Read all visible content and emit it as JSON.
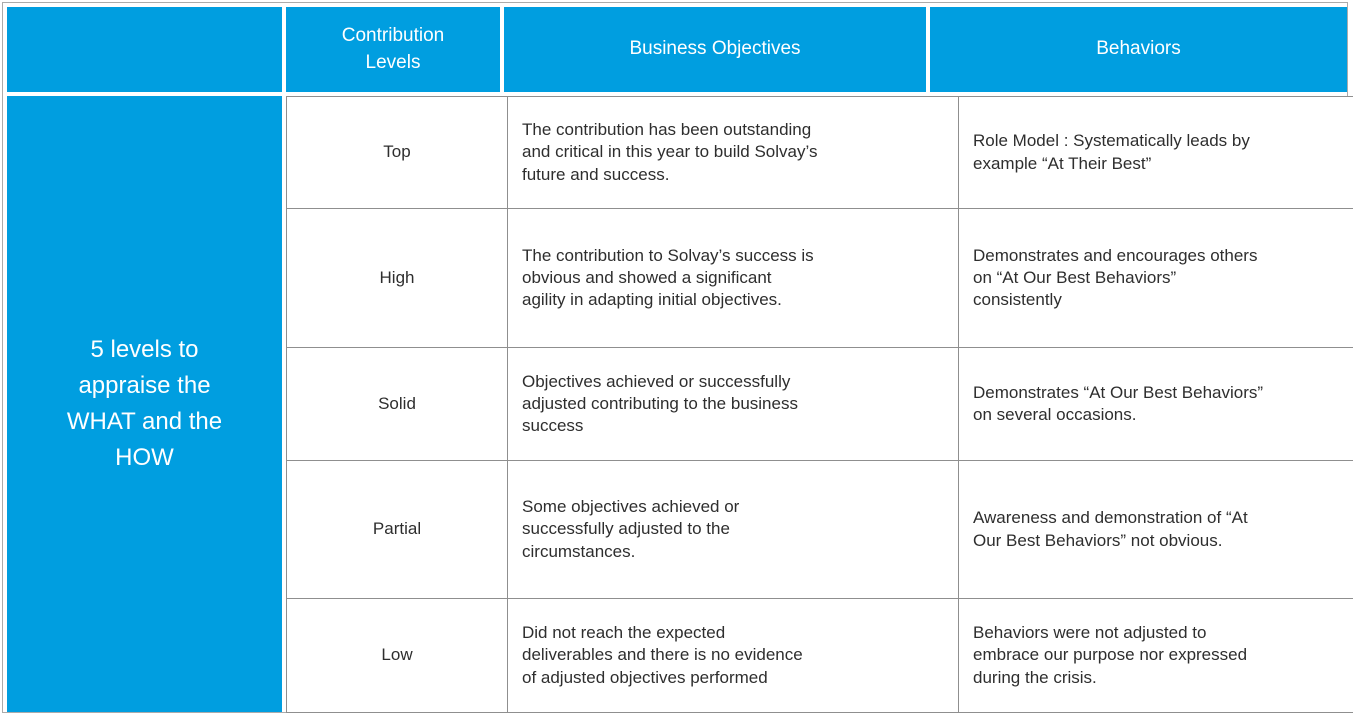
{
  "table": {
    "colors": {
      "accent": "#009EE0",
      "body_border": "#8F8F8F",
      "outer_border": "#ABABAB",
      "header_text": "#FFFFFF",
      "body_text": "#2E2E2E"
    },
    "headers": {
      "empty": "",
      "levels": "Contribution\nLevels",
      "objectives": "Business Objectives",
      "behaviors": "Behaviors"
    },
    "left_banner": "5 levels to\nappraise the\nWHAT and the\nHOW",
    "rows": [
      {
        "level": "Top",
        "objective": "The contribution has been outstanding\nand critical in this year to build Solvay’s\nfuture and success.",
        "behavior": "Role Model : Systematically leads by\nexample “At Their Best”"
      },
      {
        "level": "High",
        "objective": "The contribution to Solvay’s success is\nobvious and showed a significant\nagility in adapting initial objectives.",
        "behavior": "Demonstrates and encourages others\non “At Our Best Behaviors”\nconsistently"
      },
      {
        "level": "Solid",
        "objective": "Objectives achieved or successfully\nadjusted contributing to the business\nsuccess",
        "behavior": "Demonstrates “At Our Best Behaviors”\non several occasions."
      },
      {
        "level": "Partial",
        "objective": "Some objectives achieved or\nsuccessfully adjusted to the\ncircumstances.",
        "behavior": "Awareness and demonstration of “At\nOur Best Behaviors” not obvious."
      },
      {
        "level": "Low",
        "objective": "Did not reach the expected\ndeliverables and there is no evidence\nof adjusted objectives performed",
        "behavior": "Behaviors were not adjusted to\nembrace our purpose nor expressed\nduring the crisis."
      }
    ]
  }
}
